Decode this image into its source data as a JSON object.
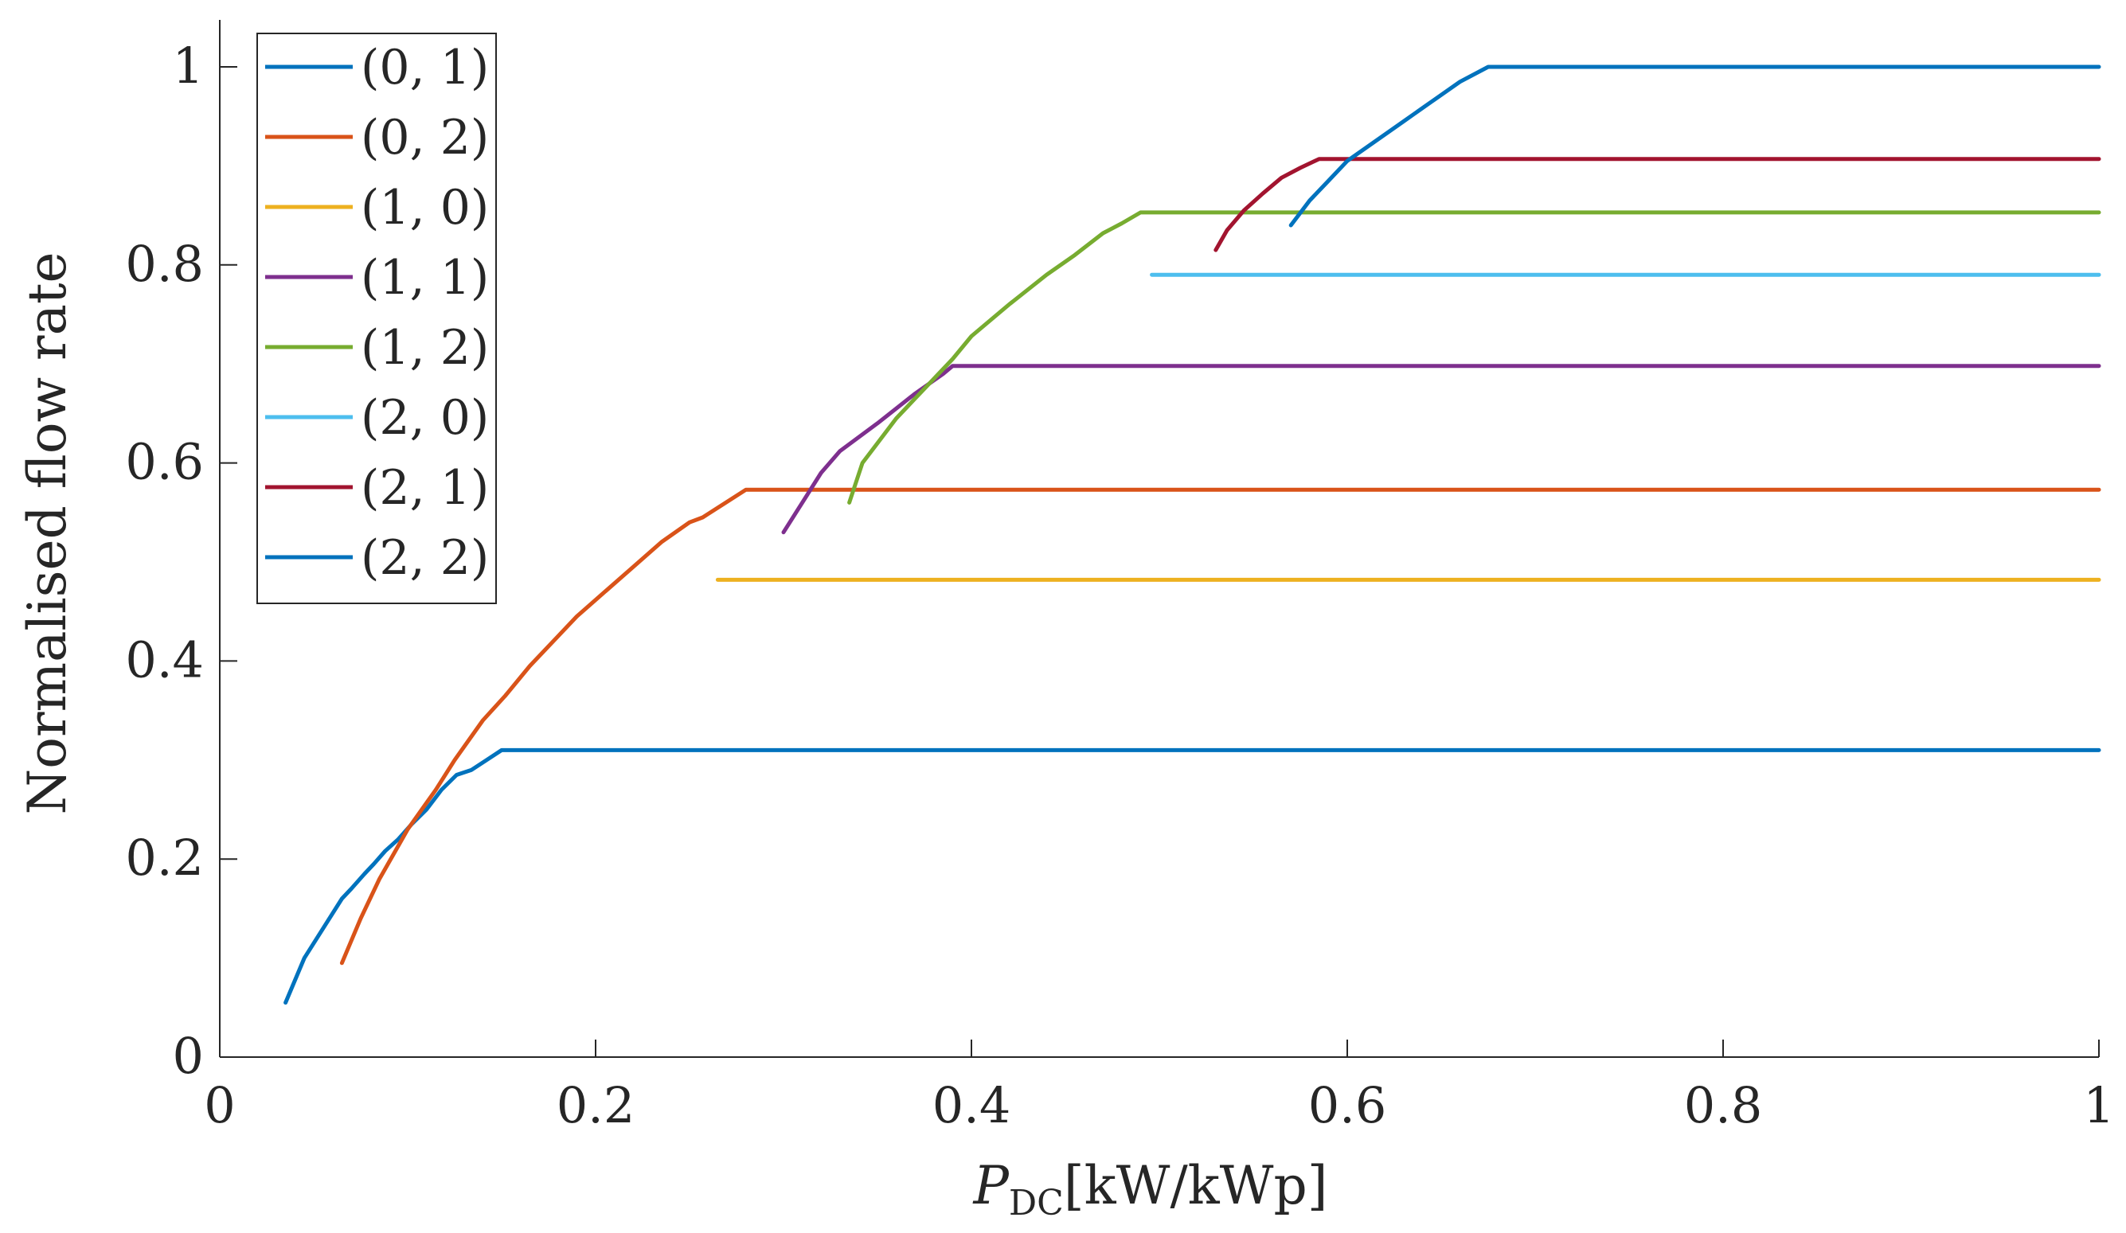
{
  "chart_data": {
    "type": "line",
    "title": "",
    "xlabel_main": "P",
    "xlabel_sub": "DC",
    "xlabel_rest": "[kW/kWp]",
    "ylabel": "Normalised flow rate",
    "xlim": [
      0,
      1
    ],
    "ylim": [
      0,
      1
    ],
    "xticks": [
      0,
      0.2,
      0.4,
      0.6,
      0.8,
      1
    ],
    "xtick_labels": [
      "0",
      "0.2",
      "0.4",
      "0.6",
      "0.8",
      "1"
    ],
    "yticks": [
      0,
      0.2,
      0.4,
      0.6,
      0.8,
      1
    ],
    "ytick_labels": [
      "0",
      "0.2",
      "0.4",
      "0.6",
      "0.8",
      "1"
    ],
    "grid": false,
    "legend_position": "top-left",
    "series": [
      {
        "name": "(0, 1)",
        "color": "#0072BD",
        "x": [
          0.035,
          0.045,
          0.055,
          0.065,
          0.07,
          0.077,
          0.082,
          0.088,
          0.095,
          0.102,
          0.11,
          0.118,
          0.126,
          0.134,
          0.142,
          0.15,
          1.0
        ],
        "y": [
          0.055,
          0.1,
          0.13,
          0.16,
          0.17,
          0.185,
          0.195,
          0.208,
          0.22,
          0.235,
          0.25,
          0.27,
          0.285,
          0.29,
          0.3,
          0.31,
          0.31
        ]
      },
      {
        "name": "(0, 2)",
        "color": "#D95319",
        "x": [
          0.065,
          0.075,
          0.085,
          0.1,
          0.115,
          0.125,
          0.14,
          0.152,
          0.165,
          0.18,
          0.19,
          0.205,
          0.22,
          0.235,
          0.25,
          0.257,
          0.28,
          1.0
        ],
        "y": [
          0.095,
          0.14,
          0.18,
          0.23,
          0.27,
          0.3,
          0.34,
          0.365,
          0.395,
          0.425,
          0.445,
          0.47,
          0.495,
          0.52,
          0.54,
          0.545,
          0.573,
          0.573
        ]
      },
      {
        "name": "(1, 0)",
        "color": "#EDB120",
        "x": [
          0.265,
          1.0
        ],
        "y": [
          0.482,
          0.482
        ]
      },
      {
        "name": "(1, 1)",
        "color": "#7E2F8E",
        "x": [
          0.3,
          0.31,
          0.32,
          0.33,
          0.35,
          0.37,
          0.385,
          0.39,
          1.0
        ],
        "y": [
          0.53,
          0.56,
          0.59,
          0.612,
          0.64,
          0.67,
          0.69,
          0.698,
          0.698
        ]
      },
      {
        "name": "(1, 2)",
        "color": "#77AC30",
        "x": [
          0.335,
          0.342,
          0.35,
          0.36,
          0.37,
          0.38,
          0.39,
          0.4,
          0.42,
          0.44,
          0.455,
          0.47,
          0.48,
          0.49,
          1.0
        ],
        "y": [
          0.56,
          0.6,
          0.62,
          0.645,
          0.665,
          0.685,
          0.705,
          0.728,
          0.76,
          0.79,
          0.81,
          0.832,
          0.842,
          0.853,
          0.853
        ]
      },
      {
        "name": "(2, 0)",
        "color": "#4DBEEE",
        "x": [
          0.496,
          1.0
        ],
        "y": [
          0.79,
          0.79
        ]
      },
      {
        "name": "(2, 1)",
        "color": "#A2142F",
        "x": [
          0.53,
          0.536,
          0.545,
          0.555,
          0.565,
          0.575,
          0.585,
          1.0
        ],
        "y": [
          0.815,
          0.835,
          0.855,
          0.872,
          0.888,
          0.898,
          0.907,
          0.907
        ]
      },
      {
        "name": "(2, 2)",
        "color": "#0072BD",
        "x": [
          0.57,
          0.58,
          0.59,
          0.6,
          0.615,
          0.63,
          0.645,
          0.66,
          0.675,
          1.0
        ],
        "y": [
          0.84,
          0.865,
          0.885,
          0.905,
          0.925,
          0.945,
          0.965,
          0.985,
          1.0,
          1.0
        ]
      }
    ]
  }
}
